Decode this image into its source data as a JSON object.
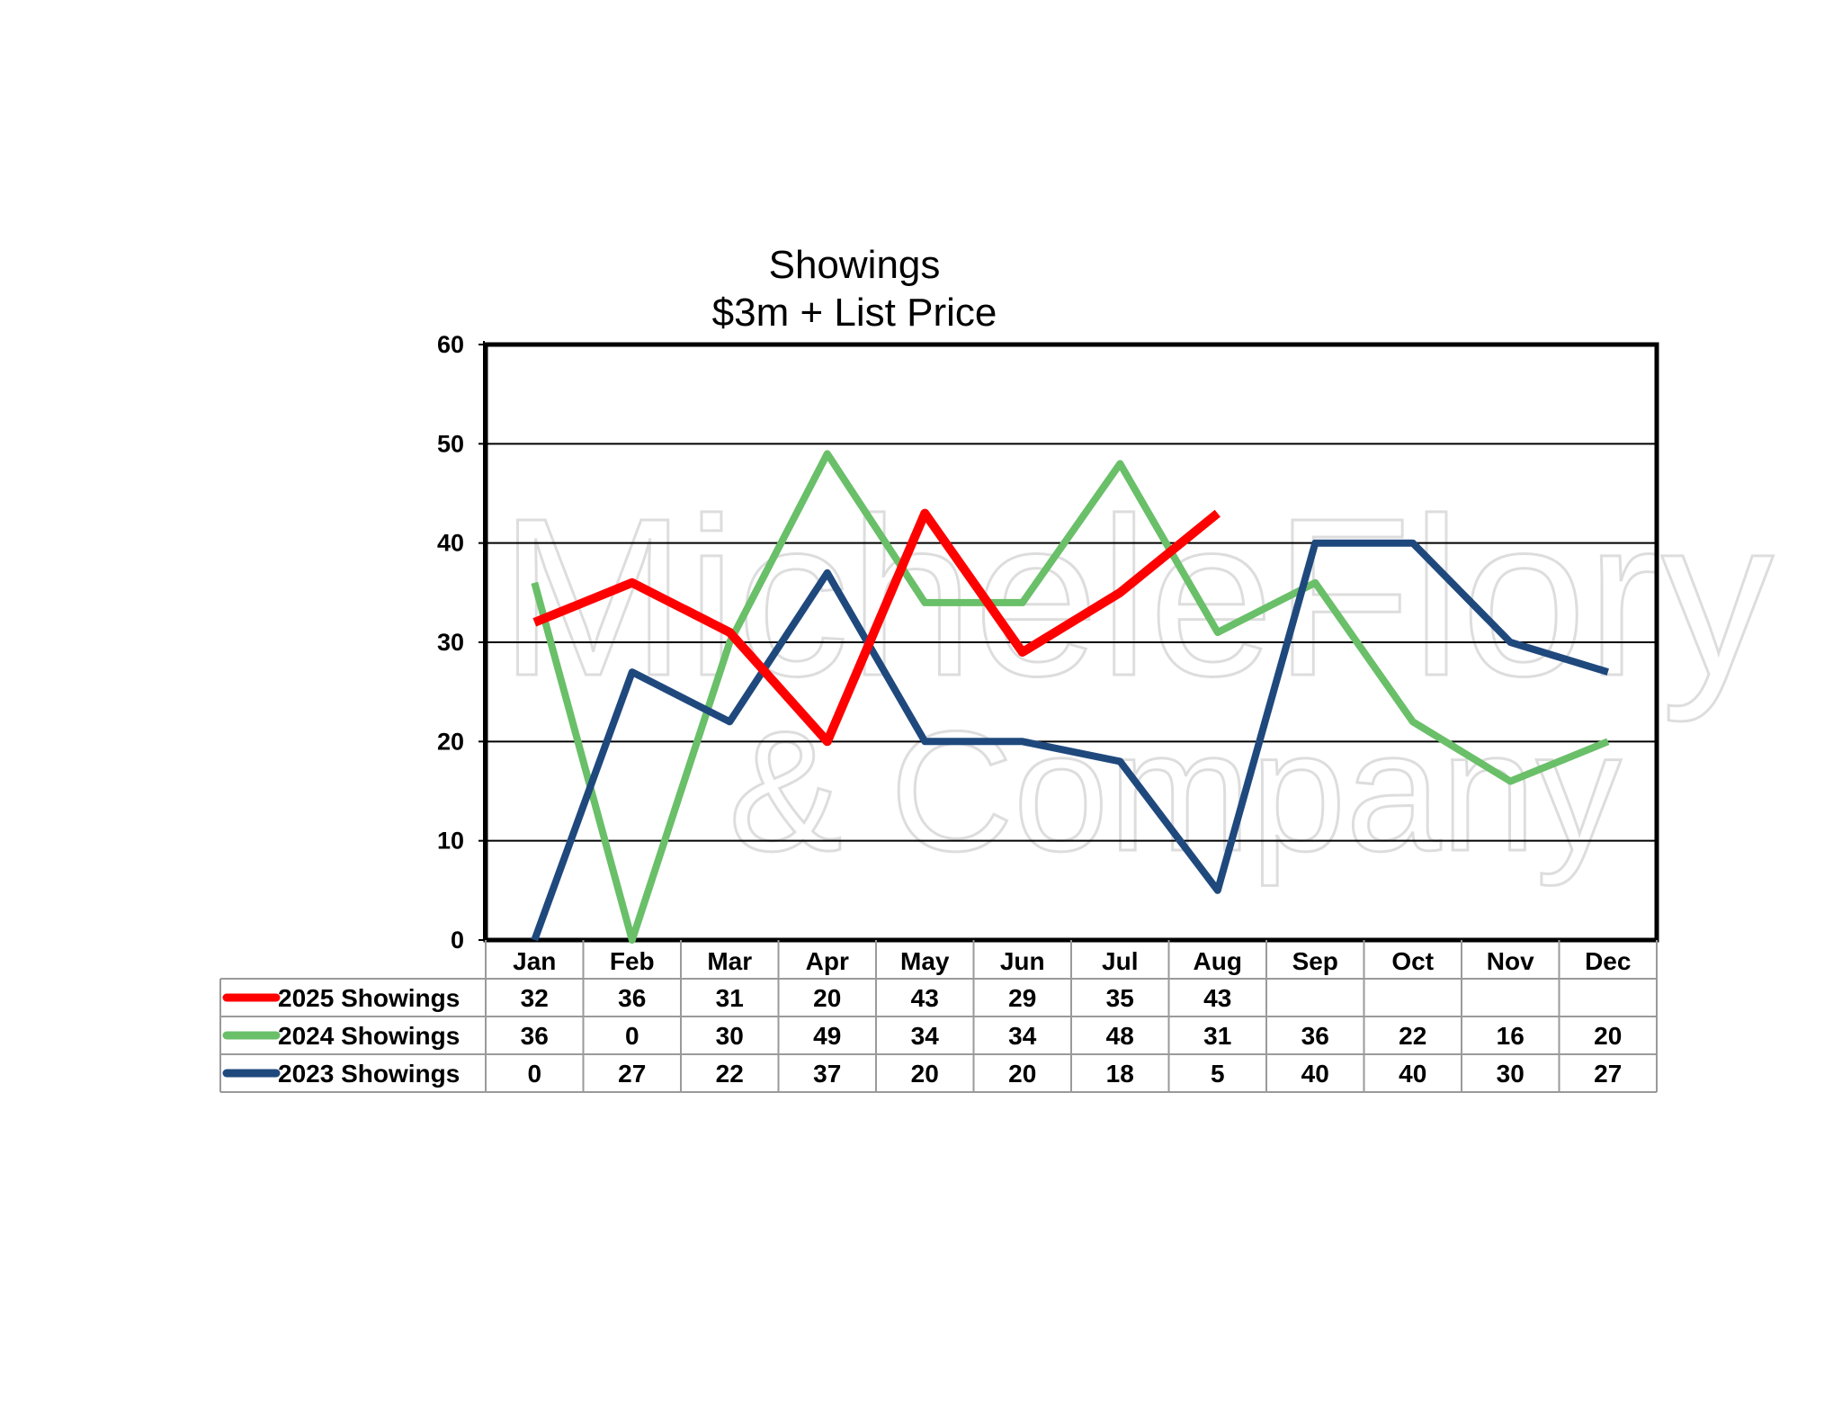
{
  "chart_data": {
    "type": "line",
    "title": "Showings",
    "subtitle": "$3m + List Price",
    "categories": [
      "Jan",
      "Feb",
      "Mar",
      "Apr",
      "May",
      "Jun",
      "Jul",
      "Aug",
      "Sep",
      "Oct",
      "Nov",
      "Dec"
    ],
    "ylim": [
      0,
      60
    ],
    "yticks": [
      0,
      10,
      20,
      30,
      40,
      50,
      60
    ],
    "grid": true,
    "legend": "data-table",
    "series": [
      {
        "name": "2025 Showings",
        "color": "#ff0000",
        "values": [
          32,
          36,
          31,
          20,
          43,
          29,
          35,
          43,
          null,
          null,
          null,
          null
        ]
      },
      {
        "name": "2024 Showings",
        "color": "#6abf69",
        "values": [
          36,
          0,
          30,
          49,
          34,
          34,
          48,
          31,
          36,
          22,
          16,
          20
        ]
      },
      {
        "name": "2023 Showings",
        "color": "#1f497d",
        "values": [
          0,
          27,
          22,
          37,
          20,
          20,
          18,
          5,
          40,
          40,
          30,
          27
        ]
      }
    ]
  },
  "watermark": {
    "line1": "MicheleFlory",
    "line2": "& Company"
  }
}
